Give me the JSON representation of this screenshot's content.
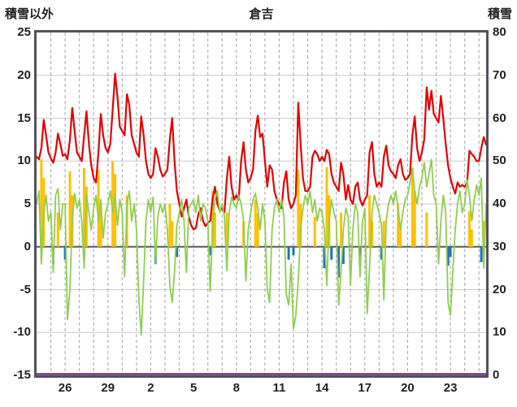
{
  "header": {
    "left_axis_title": "積雪以外",
    "title": "倉吉",
    "right_axis_title": "積雪"
  },
  "axes": {
    "left_min": -15,
    "left_max": 25,
    "right_min": 0,
    "right_max": 80,
    "left_ticks": [
      25,
      20,
      15,
      10,
      5,
      0,
      -5,
      -10,
      -15
    ],
    "right_ticks": [
      80,
      70,
      60,
      50,
      40,
      30,
      20,
      10,
      0
    ],
    "x_tick_labels": [
      "26",
      "29",
      "2",
      "5",
      "8",
      "11",
      "14",
      "17",
      "20",
      "23"
    ],
    "x_tick_days": [
      2,
      5,
      8,
      11,
      14,
      17,
      20,
      23,
      26,
      29
    ],
    "grid": "vertical dashed per day, horizontal light per 5 units, dark zero line"
  },
  "colors": {
    "red_line": "#e60000",
    "green_line": "#8fce4e",
    "orange_bar": "#ffc000",
    "blue_bar": "#2271b3",
    "purple_line": "#6a2d91",
    "grid_v": "#a6a6a6",
    "grid_h": "#cccccc",
    "zero_line": "#595959",
    "border": "#52525c",
    "text": "#222222"
  },
  "chart_data": {
    "type": "line",
    "title": "倉吉",
    "xlabel": "",
    "ylabel_left": "積雪以外",
    "ylabel_right": "積雪",
    "left_ylim": [
      -15,
      25
    ],
    "right_ylim": [
      0,
      80
    ],
    "samples_per_day": 6,
    "total_days": 31.5,
    "x_start_label": "26 (first labeled day, data begins ~2 days earlier)",
    "series": [
      {
        "name": "red-temperature-line",
        "kind": "line",
        "axis": "left",
        "color": "#e60000",
        "values": [
          10.5,
          10.2,
          11.5,
          14.8,
          13.0,
          11.0,
          10.3,
          9.8,
          11.0,
          13.2,
          12.0,
          10.6,
          10.8,
          10.2,
          12.5,
          16.2,
          13.5,
          11.0,
          10.5,
          10.0,
          13.0,
          15.8,
          12.0,
          9.5,
          8.0,
          7.5,
          11.0,
          15.5,
          13.0,
          11.5,
          11.0,
          12.0,
          16.0,
          20.2,
          17.5,
          14.0,
          13.5,
          13.0,
          17.8,
          16.5,
          13.0,
          12.0,
          11.0,
          10.5,
          15.2,
          13.0,
          10.0,
          8.5,
          8.0,
          8.5,
          11.5,
          10.5,
          9.0,
          8.2,
          8.5,
          9.0,
          12.5,
          15.0,
          10.0,
          6.5,
          5.0,
          3.5,
          4.5,
          5.5,
          3.5,
          2.5,
          2.0,
          2.2,
          3.8,
          4.5,
          3.0,
          2.4,
          2.8,
          3.0,
          5.5,
          7.0,
          5.0,
          4.2,
          4.5,
          4.0,
          8.0,
          10.5,
          7.0,
          5.5,
          6.0,
          5.5,
          10.0,
          12.2,
          9.0,
          7.5,
          8.0,
          9.0,
          13.5,
          15.3,
          12.8,
          13.2,
          10.0,
          7.0,
          9.5,
          9.0,
          6.5,
          5.5,
          5.0,
          4.5,
          7.5,
          8.8,
          5.5,
          4.5,
          5.0,
          6.0,
          16.8,
          12.0,
          8.0,
          6.5,
          6.5,
          7.0,
          10.5,
          11.2,
          10.8,
          10.0,
          10.5,
          10.0,
          11.3,
          10.8,
          8.5,
          7.5,
          7.0,
          6.5,
          9.8,
          8.5,
          5.5,
          7.2,
          5.5,
          5.0,
          7.0,
          7.5,
          5.5,
          4.8,
          5.5,
          6.0,
          11.0,
          12.2,
          8.5,
          7.0,
          7.5,
          7.0,
          10.5,
          11.8,
          9.5,
          8.8,
          8.5,
          8.0,
          9.5,
          10.2,
          8.5,
          7.8,
          8.0,
          8.5,
          13.0,
          15.2,
          11.5,
          10.0,
          11.0,
          12.5,
          18.6,
          16.0,
          18.2,
          15.5,
          15.0,
          14.5,
          17.6,
          15.0,
          12.0,
          9.5,
          8.0,
          7.0,
          6.2,
          7.5,
          7.0,
          7.2,
          7.0,
          7.5,
          11.2,
          10.8,
          10.5,
          10.0,
          10.0,
          11.5,
          12.8,
          11.9
        ]
      },
      {
        "name": "green-line",
        "kind": "line",
        "axis": "left",
        "color": "#8fce4e",
        "values": [
          5.0,
          6.5,
          -2.0,
          4.0,
          6.0,
          3.0,
          4.0,
          -3.0,
          6.0,
          6.8,
          2.0,
          5.0,
          5.0,
          -8.5,
          -5.0,
          3.0,
          6.2,
          4.5,
          5.5,
          3.0,
          -2.5,
          6.0,
          4.0,
          2.0,
          4.5,
          6.0,
          3.0,
          5.5,
          1.0,
          4.0,
          5.0,
          6.5,
          4.0,
          6.0,
          2.5,
          5.5,
          4.0,
          -3.5,
          5.0,
          6.5,
          3.0,
          5.0,
          2.0,
          -6.0,
          -10.3,
          -4.0,
          3.0,
          5.5,
          4.0,
          5.8,
          -2.0,
          3.5,
          5.0,
          4.0,
          5.0,
          2.0,
          -4.5,
          -6.5,
          -3.0,
          2.5,
          4.0,
          5.5,
          3.0,
          -3.0,
          4.5,
          5.0,
          5.5,
          4.0,
          6.0,
          3.0,
          5.0,
          4.5,
          3.0,
          -5.2,
          2.0,
          5.5,
          6.5,
          4.0,
          5.0,
          3.5,
          -2.8,
          4.0,
          5.8,
          5.0,
          4.5,
          6.0,
          5.0,
          3.0,
          -4.0,
          2.0,
          4.0,
          5.5,
          6.2,
          4.5,
          2.0,
          5.0,
          3.0,
          -5.0,
          -6.5,
          2.0,
          4.5,
          5.5,
          4.0,
          5.5,
          3.5,
          -5.5,
          -6.8,
          -2.0,
          -9.6,
          -8.0,
          -4.0,
          2.0,
          4.5,
          6.0,
          5.0,
          6.5,
          4.0,
          5.5,
          3.0,
          4.5,
          4.0,
          2.0,
          -4.5,
          3.0,
          5.5,
          4.0,
          3.0,
          -6.8,
          -3.0,
          2.0,
          4.5,
          3.5,
          -4.5,
          2.0,
          5.0,
          4.0,
          -3.5,
          3.0,
          4.5,
          -7.8,
          -2.5,
          4.0,
          6.0,
          5.0,
          4.0,
          2.5,
          -6.2,
          3.0,
          5.0,
          6.0,
          5.0,
          6.5,
          4.5,
          2.0,
          4.0,
          5.5,
          6.0,
          7.5,
          9.2,
          6.5,
          5.0,
          7.0,
          8.0,
          9.8,
          7.0,
          8.5,
          10.2,
          6.0,
          5.0,
          -2.0,
          3.0,
          6.0,
          4.0,
          -6.5,
          -8.0,
          -3.0,
          2.0,
          5.0,
          6.5,
          4.0,
          5.0,
          7.8,
          6.0,
          3.0,
          5.5,
          7.2,
          6.0,
          8.0,
          -2.5,
          5.0
        ]
      },
      {
        "name": "orange-bars",
        "kind": "bar",
        "axis": "left",
        "color": "#ffc000",
        "points": [
          [
            2,
            10.2
          ],
          [
            3,
            8.0
          ],
          [
            9,
            4.0
          ],
          [
            14,
            8.8
          ],
          [
            15,
            6.0
          ],
          [
            20,
            9.2
          ],
          [
            21,
            7.0
          ],
          [
            26,
            9.0
          ],
          [
            27,
            5.0
          ],
          [
            32,
            10.0
          ],
          [
            33,
            8.5
          ],
          [
            38,
            6.0
          ],
          [
            56,
            5.0
          ],
          [
            57,
            3.0
          ],
          [
            74,
            6.5
          ],
          [
            75,
            4.0
          ],
          [
            80,
            4.0
          ],
          [
            87,
            3.0
          ],
          [
            92,
            5.5
          ],
          [
            93,
            4.0
          ],
          [
            110,
            9.0
          ],
          [
            111,
            5.0
          ],
          [
            117,
            3.5
          ],
          [
            122,
            9.3
          ],
          [
            123,
            6.0
          ],
          [
            128,
            4.0
          ],
          [
            140,
            6.0
          ],
          [
            141,
            3.0
          ],
          [
            146,
            3.0
          ],
          [
            152,
            5.0
          ],
          [
            153,
            2.5
          ],
          [
            158,
            9.2
          ],
          [
            159,
            6.5
          ],
          [
            164,
            4.0
          ],
          [
            182,
            4.2
          ],
          [
            183,
            2.0
          ],
          [
            188,
            3.0
          ]
        ]
      },
      {
        "name": "blue-bars",
        "kind": "bar",
        "axis": "left",
        "color": "#2271b3",
        "points": [
          [
            7,
            -2.0
          ],
          [
            12,
            -1.5
          ],
          [
            50,
            -2.0
          ],
          [
            59,
            -1.2
          ],
          [
            73,
            -1.0
          ],
          [
            106,
            -1.5
          ],
          [
            108,
            -1.0
          ],
          [
            121,
            -2.5
          ],
          [
            124,
            -1.5
          ],
          [
            127,
            -3.6
          ],
          [
            129,
            -2.0
          ],
          [
            136,
            -2.2
          ],
          [
            145,
            -1.5
          ],
          [
            173,
            -2.2
          ],
          [
            174,
            -1.2
          ],
          [
            187,
            -1.8
          ]
        ]
      },
      {
        "name": "purple-snow-depth-line",
        "kind": "const",
        "axis": "right",
        "color": "#6a2d91",
        "value": 0
      }
    ]
  }
}
